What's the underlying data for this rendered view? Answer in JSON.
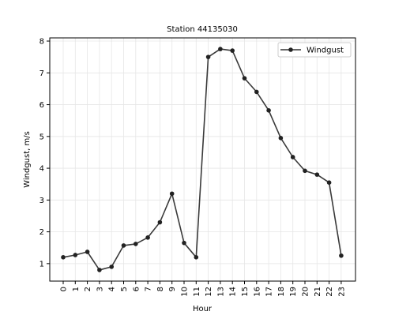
{
  "chart_data": {
    "type": "line",
    "title": "Station 44135030",
    "xlabel": "Hour",
    "ylabel": "Windgust, m/s",
    "x": [
      "0",
      "1",
      "2",
      "3",
      "4",
      "5",
      "6",
      "7",
      "8",
      "9",
      "10",
      "11",
      "12",
      "13",
      "14",
      "15",
      "16",
      "17",
      "18",
      "19",
      "20",
      "21",
      "22",
      "23"
    ],
    "series": [
      {
        "name": "Windgust",
        "color": "#222222",
        "values": [
          1.2,
          1.27,
          1.37,
          0.8,
          0.9,
          1.57,
          1.62,
          1.82,
          2.3,
          3.2,
          1.65,
          1.2,
          7.5,
          7.75,
          7.7,
          6.83,
          6.4,
          5.82,
          4.95,
          4.35,
          3.92,
          3.8,
          3.55,
          1.25
        ]
      }
    ],
    "ylim": [
      0.45,
      8.1
    ],
    "yticks": [
      1,
      2,
      3,
      4,
      5,
      6,
      7,
      8
    ],
    "grid": true,
    "legend_position": "top-right"
  }
}
